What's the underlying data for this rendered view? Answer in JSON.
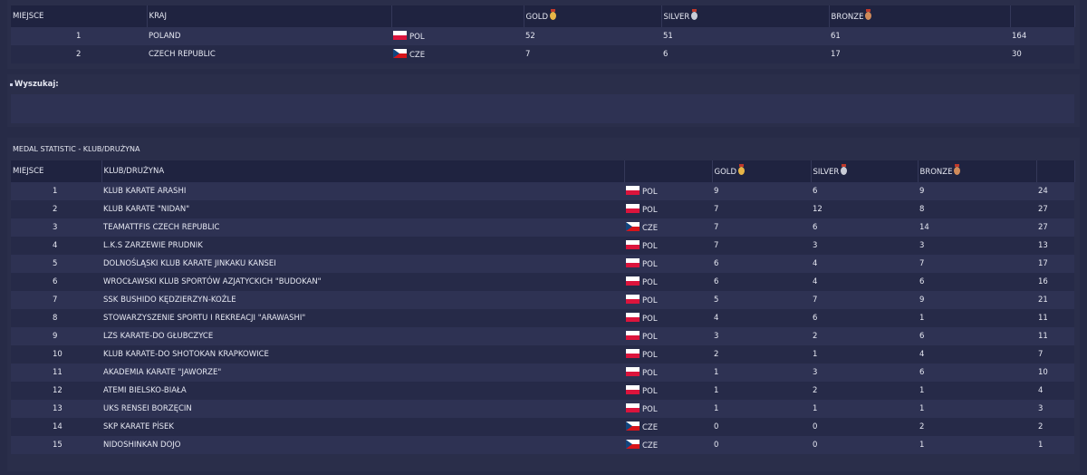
{
  "country_table": {
    "headers": {
      "place": "MIEJSCE",
      "country": "KRAJ",
      "gold": "GOLD",
      "silver": "SILVER",
      "bronze": "BRONZE"
    },
    "rows": [
      {
        "place": "1",
        "name": "POLAND",
        "code": "POL",
        "gold": "52",
        "silver": "51",
        "bronze": "61",
        "total": "164"
      },
      {
        "place": "2",
        "name": "CZECH REPUBLIC",
        "code": "CZE",
        "gold": "7",
        "silver": "6",
        "bronze": "17",
        "total": "30"
      }
    ]
  },
  "search": {
    "label": "Wyszukaj:"
  },
  "club_table": {
    "title": "MEDAL STATISTIC - KLUB/DRUŻYNA",
    "headers": {
      "place": "MIEJSCE",
      "club": "KLUB/DRUŻYNA",
      "gold": "GOLD",
      "silver": "SILVER",
      "bronze": "BRONZE"
    },
    "rows": [
      {
        "place": "1",
        "name": "KLUB KARATE ARASHI",
        "code": "POL",
        "gold": "9",
        "silver": "6",
        "bronze": "9",
        "total": "24"
      },
      {
        "place": "2",
        "name": "KLUB KARATE \"NIDAN\"",
        "code": "POL",
        "gold": "7",
        "silver": "12",
        "bronze": "8",
        "total": "27"
      },
      {
        "place": "3",
        "name": "TEAMATTFIS CZECH REPUBLIC",
        "code": "CZE",
        "gold": "7",
        "silver": "6",
        "bronze": "14",
        "total": "27"
      },
      {
        "place": "4",
        "name": "L.K.S ZARZEWIE PRUDNIK",
        "code": "POL",
        "gold": "7",
        "silver": "3",
        "bronze": "3",
        "total": "13"
      },
      {
        "place": "5",
        "name": "DOLNOŚLĄSKI KLUB KARATE JINKAKU KANSEI",
        "code": "POL",
        "gold": "6",
        "silver": "4",
        "bronze": "7",
        "total": "17"
      },
      {
        "place": "6",
        "name": "WROCŁAWSKI KLUB SPORTÓW AZJATYCKICH \"BUDOKAN\"",
        "code": "POL",
        "gold": "6",
        "silver": "4",
        "bronze": "6",
        "total": "16"
      },
      {
        "place": "7",
        "name": "SSK BUSHIDO KĘDZIERZYN-KOŹLE",
        "code": "POL",
        "gold": "5",
        "silver": "7",
        "bronze": "9",
        "total": "21"
      },
      {
        "place": "8",
        "name": "STOWARZYSZENIE SPORTU I REKREACJI \"ARAWASHI\"",
        "code": "POL",
        "gold": "4",
        "silver": "6",
        "bronze": "1",
        "total": "11"
      },
      {
        "place": "9",
        "name": "LZS KARATE-DO GŁUBCZYCE",
        "code": "POL",
        "gold": "3",
        "silver": "2",
        "bronze": "6",
        "total": "11"
      },
      {
        "place": "10",
        "name": "KLUB KARATE-DO SHOTOKAN KRAPKOWICE",
        "code": "POL",
        "gold": "2",
        "silver": "1",
        "bronze": "4",
        "total": "7"
      },
      {
        "place": "11",
        "name": "AKADEMIA KARATE \"JAWORZE\"",
        "code": "POL",
        "gold": "1",
        "silver": "3",
        "bronze": "6",
        "total": "10"
      },
      {
        "place": "12",
        "name": "ATEMI BIELSKO-BIAŁA",
        "code": "POL",
        "gold": "1",
        "silver": "2",
        "bronze": "1",
        "total": "4"
      },
      {
        "place": "13",
        "name": "UKS RENSEI BORZĘCIN",
        "code": "POL",
        "gold": "1",
        "silver": "1",
        "bronze": "1",
        "total": "3"
      },
      {
        "place": "14",
        "name": "SKP KARATE PÍSEK",
        "code": "CZE",
        "gold": "0",
        "silver": "0",
        "bronze": "2",
        "total": "2"
      },
      {
        "place": "15",
        "name": "NIDOSHINKAN DOJO",
        "code": "CZE",
        "gold": "0",
        "silver": "0",
        "bronze": "1",
        "total": "1"
      }
    ]
  },
  "colors": {
    "background": "#272b47",
    "header": "#1f2340",
    "row_odd": "#2e3253",
    "row_even": "#262a48",
    "gold": "#e7b547",
    "silver": "#c9ccd6",
    "bronze": "#d08a5a"
  }
}
